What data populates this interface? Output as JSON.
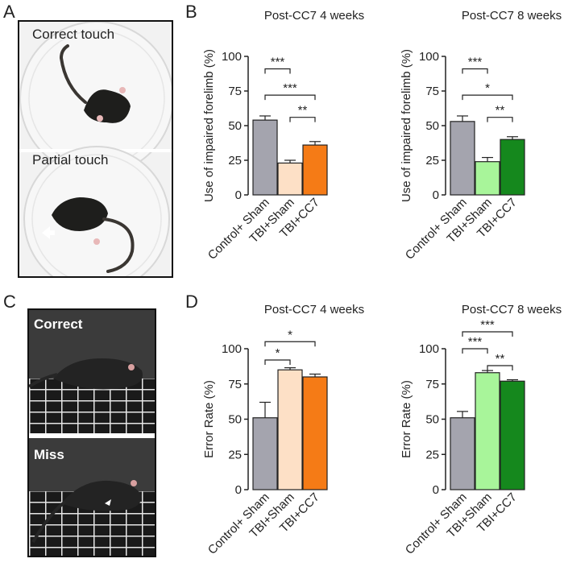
{
  "panels": {
    "a": "A",
    "b": "B",
    "c": "C",
    "d": "D"
  },
  "photos": {
    "a_top": "Correct touch",
    "a_bottom": "Partial touch",
    "c_top": "Correct",
    "c_bottom": "Miss"
  },
  "colors": {
    "control": "#a4a4ae",
    "tbi_sham_4w": "#fde0c6",
    "tbi_cc7_4w": "#f57b16",
    "tbi_sham_8w": "#a8f59a",
    "tbi_cc7_8w": "#15881d"
  },
  "chart_data": [
    {
      "type": "bar",
      "title": "Post-CC7 4 weeks",
      "ylabel": "Use of impaired forelimb (%)",
      "categories": [
        "Control+ Sham",
        "TBI+Sham",
        "TBI+CC7"
      ],
      "values": [
        54,
        23,
        36
      ],
      "errors": [
        3,
        2,
        2.5
      ],
      "colors": [
        "#a4a4ae",
        "#fde0c6",
        "#f57b16"
      ],
      "ylim": [
        0,
        100
      ],
      "yticks": [
        0,
        25,
        50,
        75,
        100
      ],
      "significance": [
        {
          "from": 0,
          "to": 1,
          "label": "***",
          "y": 91
        },
        {
          "from": 0,
          "to": 2,
          "label": "***",
          "y": 72
        },
        {
          "from": 1,
          "to": 2,
          "label": "**",
          "y": 56
        }
      ]
    },
    {
      "type": "bar",
      "title": "Post-CC7 8 weeks",
      "ylabel": "Use of impaired forelimb (%)",
      "categories": [
        "Control+ Sham",
        "TBI+Sham",
        "TBI+CC7"
      ],
      "values": [
        53,
        24,
        40
      ],
      "errors": [
        4,
        3,
        2
      ],
      "colors": [
        "#a4a4ae",
        "#a8f59a",
        "#15881d"
      ],
      "ylim": [
        0,
        100
      ],
      "yticks": [
        0,
        25,
        50,
        75,
        100
      ],
      "significance": [
        {
          "from": 0,
          "to": 1,
          "label": "***",
          "y": 91
        },
        {
          "from": 0,
          "to": 2,
          "label": "*",
          "y": 72
        },
        {
          "from": 1,
          "to": 2,
          "label": "**",
          "y": 56
        }
      ]
    },
    {
      "type": "bar",
      "title": "Post-CC7 4 weeks",
      "ylabel": "Error Rate (%)",
      "categories": [
        "Control+ Sham",
        "TBI+Sham",
        "TBI+CC7"
      ],
      "values": [
        51,
        85,
        80
      ],
      "errors": [
        11,
        1.5,
        2
      ],
      "colors": [
        "#a4a4ae",
        "#fde0c6",
        "#f57b16"
      ],
      "ylim": [
        0,
        100
      ],
      "yticks": [
        0,
        25,
        50,
        75,
        100
      ],
      "significance": [
        {
          "from": 0,
          "to": 1,
          "label": "*",
          "y": 92
        },
        {
          "from": 0,
          "to": 2,
          "label": "*",
          "y": 105
        }
      ]
    },
    {
      "type": "bar",
      "title": "Post-CC7 8 weeks",
      "ylabel": "Error Rate (%)",
      "categories": [
        "Control+ Sham",
        "TBI+Sham",
        "TBI+CC7"
      ],
      "values": [
        51,
        83,
        77
      ],
      "errors": [
        4.5,
        1.5,
        1
      ],
      "colors": [
        "#a4a4ae",
        "#a8f59a",
        "#15881d"
      ],
      "ylim": [
        0,
        100
      ],
      "yticks": [
        0,
        25,
        50,
        75,
        100
      ],
      "significance": [
        {
          "from": 0,
          "to": 1,
          "label": "***",
          "y": 100
        },
        {
          "from": 0,
          "to": 2,
          "label": "***",
          "y": 112
        },
        {
          "from": 1,
          "to": 2,
          "label": "**",
          "y": 88
        }
      ]
    }
  ]
}
